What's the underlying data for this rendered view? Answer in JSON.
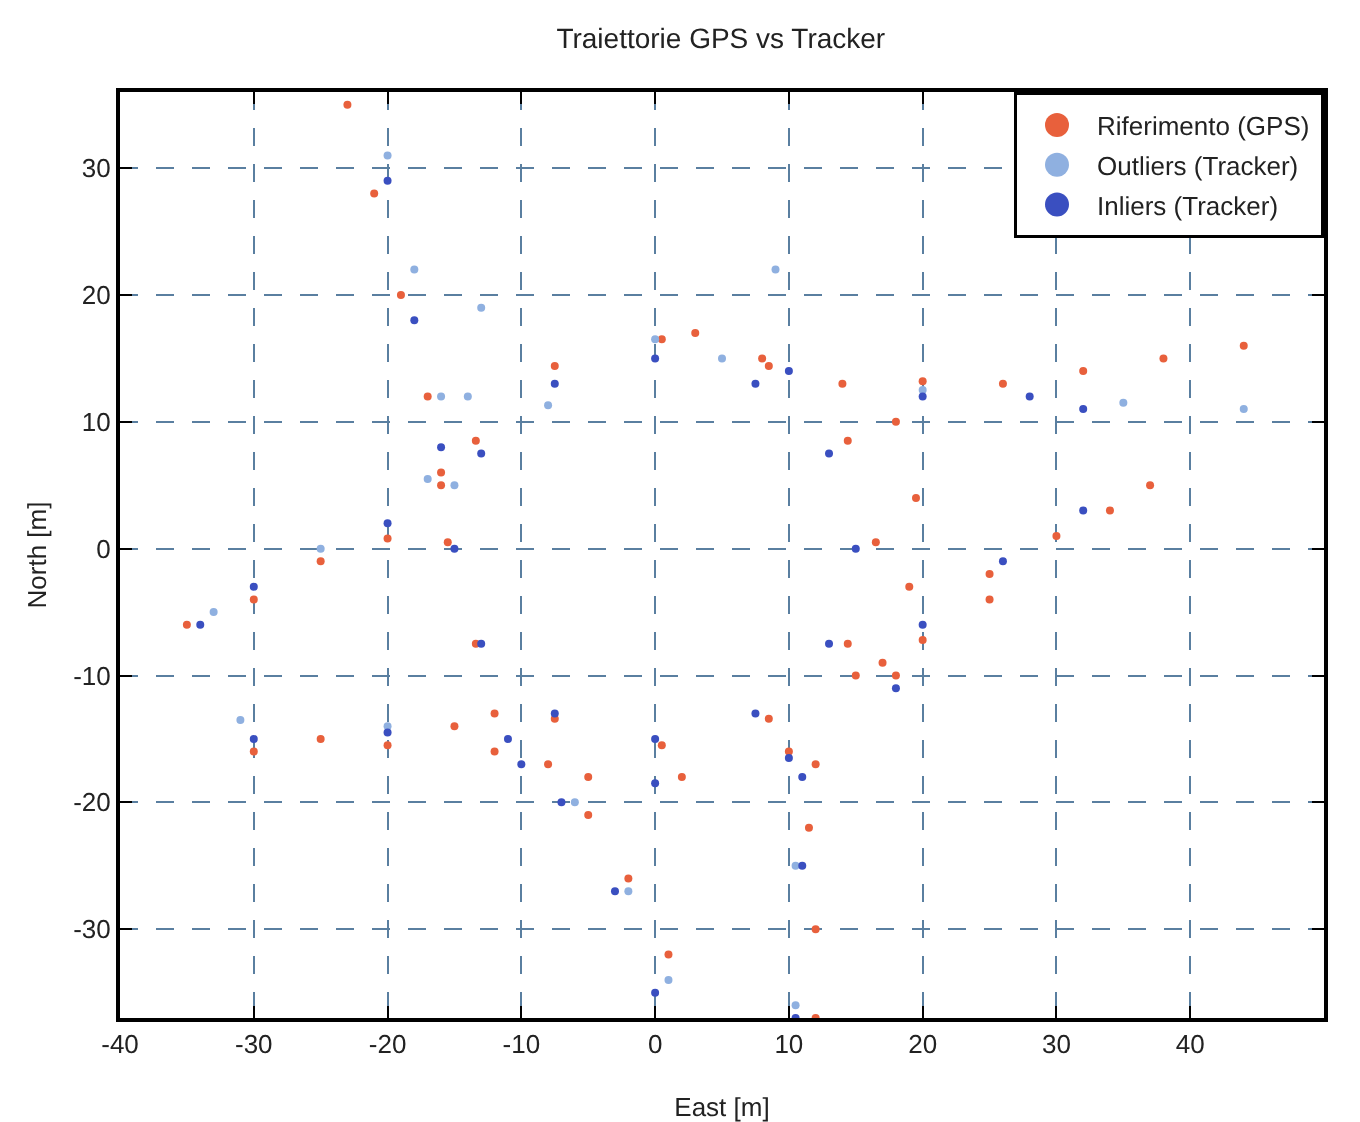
{
  "chart_data": {
    "type": "scatter",
    "title": "Traiettorie GPS vs Tracker",
    "xlabel": "East [m]",
    "ylabel": "North [m]",
    "xlim": [
      -40,
      50
    ],
    "ylim": [
      -37,
      36
    ],
    "xticks": [
      -40,
      -30,
      -20,
      -10,
      0,
      10,
      20,
      30,
      40
    ],
    "yticks": [
      -30,
      -20,
      -10,
      0,
      10,
      20,
      30
    ],
    "grid": true,
    "legend": "top right",
    "marker": "circle",
    "series": [
      {
        "name": "Riferimento (GPS)",
        "color": "#e8603c",
        "x": [
          -23,
          -21,
          -19,
          -17,
          -16,
          -35,
          -30,
          -25,
          -20,
          -16,
          -30,
          -25,
          -20,
          -15,
          3,
          8,
          14,
          20,
          26,
          32,
          38,
          44,
          15,
          20,
          25,
          30,
          34,
          37,
          12,
          12,
          11.5,
          12,
          1,
          -2,
          -5,
          -8,
          -12,
          16.5,
          14.4,
          8.5,
          0.5,
          -7.5,
          -13.4,
          -15.5,
          -13.4,
          -7.5,
          0.5,
          8.5,
          14.4,
          18,
          19.5,
          19,
          17,
          -12,
          -5,
          2,
          10,
          18,
          25
        ],
        "values": [
          35,
          28,
          20,
          12,
          6,
          -6,
          -4,
          -1,
          0.8,
          5,
          -16,
          -15,
          -15.5,
          -14,
          17,
          15,
          13,
          13.2,
          13,
          14,
          15,
          16,
          -10,
          -7.2,
          -2,
          1,
          3,
          5,
          -37,
          -30,
          -22,
          -17,
          -32,
          -26,
          -21,
          -17,
          -13,
          0.5,
          8.5,
          14.4,
          16.5,
          14.4,
          8.5,
          0.5,
          -7.5,
          -13.4,
          -15.5,
          -13.4,
          -7.5,
          10,
          4,
          -3,
          -9,
          -16,
          -18,
          -18,
          -16,
          -10,
          -4
        ]
      },
      {
        "name": "Outliers (Tracker)",
        "color": "#8fb0e0",
        "x": [
          -33,
          -25,
          -17,
          -8,
          0,
          9,
          -15,
          -14,
          -13,
          -20,
          -18,
          -16,
          5,
          20,
          35,
          44,
          -31,
          -20,
          1,
          -2,
          -6,
          10.5,
          10.5
        ],
        "values": [
          -5,
          0,
          5.5,
          11.3,
          16.5,
          22,
          5,
          12,
          19,
          31,
          22,
          12,
          15,
          12.5,
          11.5,
          11,
          -13.5,
          -14,
          -34,
          -27,
          -20,
          -36,
          -25
        ]
      },
      {
        "name": "Inliers (Tracker)",
        "color": "#3a4fc0",
        "x": [
          -20,
          -18,
          -16,
          -34,
          -30,
          -20,
          -30,
          -20,
          10,
          20,
          28,
          32,
          20,
          26,
          32,
          10.5,
          11,
          11,
          0,
          -3,
          -7,
          -11,
          -10,
          0,
          10,
          18,
          15,
          13,
          7.5,
          0,
          -7.5,
          -13,
          -15,
          -13,
          -7.5,
          0,
          7.5,
          13
        ],
        "values": [
          29,
          18,
          8,
          -6,
          -3,
          2,
          -15,
          -14.5,
          14,
          12,
          12,
          11,
          -6,
          -1,
          3,
          -37,
          -25,
          -18,
          -35,
          -27,
          -20,
          -15,
          -17,
          -18.5,
          -16.5,
          -11,
          0,
          7.5,
          13,
          15,
          13,
          7.5,
          0,
          -7.5,
          -13,
          -15,
          -13,
          -7.5
        ]
      }
    ]
  }
}
